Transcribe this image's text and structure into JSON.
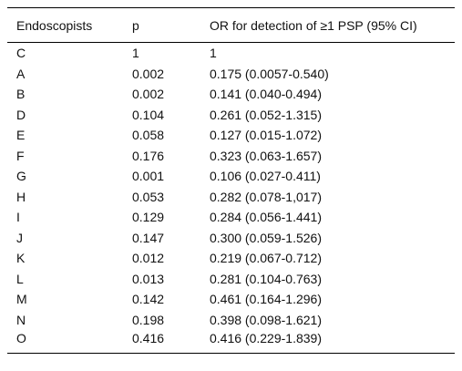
{
  "table": {
    "headers": [
      "Endoscopists",
      "p",
      "OR for detection of ≥1 PSP (95% CI)"
    ],
    "rows": [
      [
        "C",
        "1",
        "1"
      ],
      [
        "A",
        "0.002",
        "0.175 (0.0057-0.540)"
      ],
      [
        "B",
        "0.002",
        "0.141 (0.040-0.494)"
      ],
      [
        "D",
        "0.104",
        "0.261 (0.052-1.315)"
      ],
      [
        "E",
        "0.058",
        "0.127 (0.015-1.072)"
      ],
      [
        "F",
        "0.176",
        "0.323 (0.063-1.657)"
      ],
      [
        "G",
        "0.001",
        "0.106 (0.027-0.411)"
      ],
      [
        "H",
        "0.053",
        "0.282 (0.078-1,017)"
      ],
      [
        "I",
        "0.129",
        "0.284 (0.056-1.441)"
      ],
      [
        "J",
        "0.147",
        "0.300 (0.059-1.526)"
      ],
      [
        "K",
        "0.012",
        "0.219 (0.067-0.712)"
      ],
      [
        "L",
        "0.013",
        "0.281 (0.104-0.763)"
      ],
      [
        "M",
        "0.142",
        "0.461 (0.164-1.296)"
      ],
      [
        "N",
        "0.198",
        "0.398 (0.098-1.621)"
      ],
      [
        "O",
        "0.416",
        "0.416 (0.229-1.839)"
      ]
    ]
  }
}
